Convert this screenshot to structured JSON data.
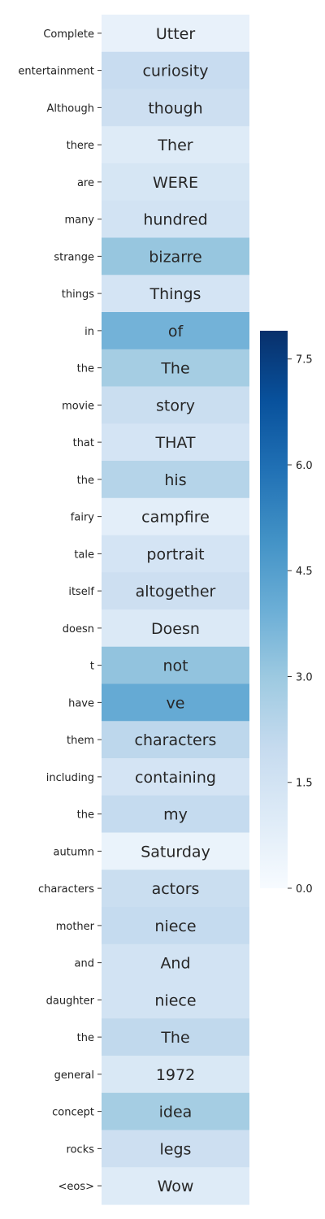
{
  "chart_data": {
    "type": "heatmap",
    "title": "",
    "xlabel": "",
    "ylabel": "",
    "colormap": "Blues",
    "row_labels": [
      "Complete",
      "entertainment",
      "Although",
      "there",
      "are",
      "many",
      "strange",
      "things",
      "in",
      "the",
      "movie",
      "that",
      "the",
      "fairy",
      "tale",
      "itself",
      "doesn",
      "t",
      "have",
      "them",
      "including",
      "the",
      "autumn",
      "characters",
      "mother",
      "and",
      "daughter",
      "the",
      "general",
      "concept",
      "rocks",
      "<eos>"
    ],
    "cell_labels": [
      "Utter",
      "curiosity",
      "though",
      "Ther",
      "WERE",
      "hundred",
      "bizarre",
      "Things",
      "of",
      "The",
      "story",
      "THAT",
      "his",
      "campfire",
      "portrait",
      "altogether",
      "Doesn",
      "not",
      "ve",
      "characters",
      "containing",
      "my",
      "Saturday",
      "actors",
      "niece",
      "And",
      "niece",
      "The",
      "1972",
      "idea",
      "legs",
      "Wow"
    ],
    "values": [
      0.6,
      1.9,
      1.7,
      1.0,
      1.3,
      1.5,
      3.1,
      1.4,
      3.8,
      2.8,
      1.8,
      1.4,
      2.4,
      0.8,
      1.4,
      1.7,
      1.1,
      3.2,
      4.1,
      2.2,
      1.4,
      2.0,
      0.5,
      1.8,
      2.0,
      1.5,
      1.5,
      2.1,
      1.2,
      2.8,
      1.7,
      1.0
    ],
    "colorbar": {
      "min": 0,
      "max": 7.9,
      "ticks": [
        0.0,
        1.5,
        3.0,
        4.5,
        6.0,
        7.5
      ],
      "tick_labels": [
        "0.0",
        "1.5",
        "3.0",
        "4.5",
        "6.0",
        "7.5"
      ]
    }
  }
}
